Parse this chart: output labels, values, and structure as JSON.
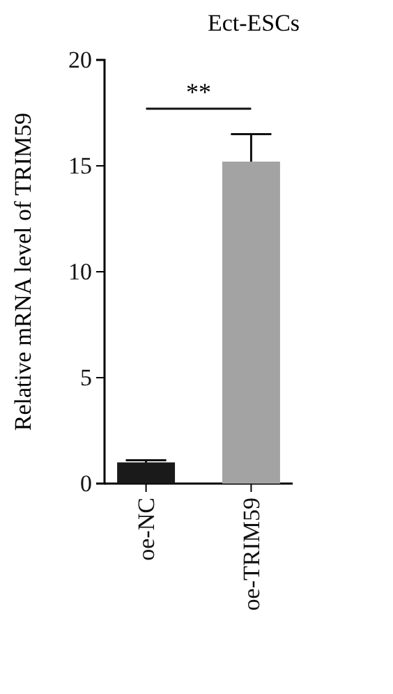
{
  "chart_data": {
    "type": "bar",
    "title": "Ect-ESCs",
    "ylabel": "Relative mRNA level of TRIM59",
    "categories": [
      "oe-NC",
      "oe-TRIM59"
    ],
    "values": [
      1.0,
      15.2
    ],
    "colors": [
      "#1a1a1a",
      "#a3a3a3"
    ],
    "errors": [
      0.1,
      1.3
    ],
    "ylim": [
      0,
      20
    ],
    "yticks": [
      0,
      5,
      10,
      15,
      20
    ],
    "annotations": [
      "**"
    ]
  }
}
